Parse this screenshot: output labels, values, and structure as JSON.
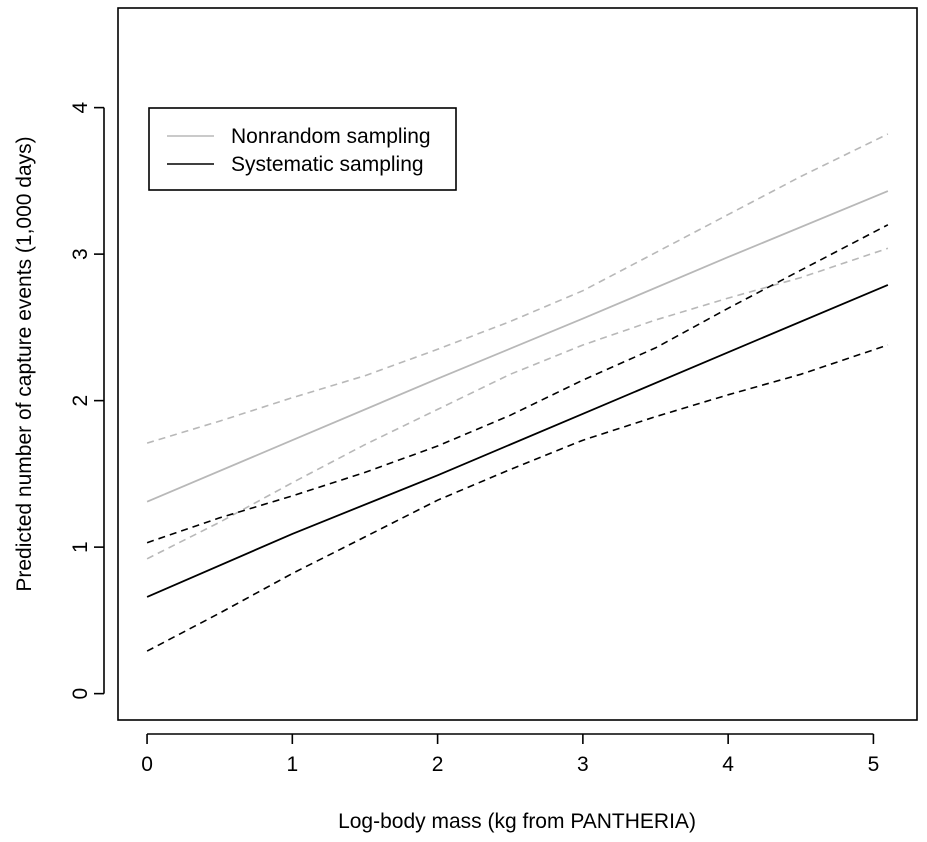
{
  "chart_data": {
    "type": "line",
    "xlabel": "Log-body mass (kg from PANTHERIA)",
    "ylabel": "Predicted number of capture events (1,000 days)",
    "xlim": [
      -0.2,
      5.3
    ],
    "ylim": [
      -0.18,
      4.68
    ],
    "x_ticks": [
      0,
      1,
      2,
      3,
      4,
      5
    ],
    "y_ticks": [
      0,
      1,
      2,
      3,
      4
    ],
    "x_tick_labels": [
      "0",
      "1",
      "2",
      "3",
      "4",
      "5"
    ],
    "y_tick_labels": [
      "0",
      "1",
      "2",
      "3",
      "4"
    ],
    "grid": false,
    "legend_position": "top-left",
    "colors": {
      "nonrandom": "#b8b8b8",
      "systematic": "#000000"
    },
    "series": [
      {
        "name": "Nonrandom sampling",
        "key": "nonrandom",
        "color": "#b8b8b8",
        "fit": [
          [
            0,
            1.31
          ],
          [
            1,
            1.73
          ],
          [
            2,
            2.15
          ],
          [
            3,
            2.56
          ],
          [
            4,
            2.98
          ],
          [
            5.1,
            3.43
          ]
        ],
        "upper": [
          [
            0,
            1.71
          ],
          [
            0.5,
            1.86
          ],
          [
            1,
            2.02
          ],
          [
            1.5,
            2.17
          ],
          [
            2,
            2.35
          ],
          [
            2.5,
            2.54
          ],
          [
            3,
            2.75
          ],
          [
            3.5,
            3.01
          ],
          [
            4,
            3.27
          ],
          [
            4.5,
            3.53
          ],
          [
            5.1,
            3.82
          ]
        ],
        "lower": [
          [
            0,
            0.92
          ],
          [
            0.5,
            1.17
          ],
          [
            1,
            1.44
          ],
          [
            1.5,
            1.7
          ],
          [
            2,
            1.94
          ],
          [
            2.5,
            2.18
          ],
          [
            3,
            2.38
          ],
          [
            3.5,
            2.55
          ],
          [
            4,
            2.7
          ],
          [
            4.5,
            2.84
          ],
          [
            5.1,
            3.04
          ]
        ]
      },
      {
        "name": "Systematic sampling",
        "key": "systematic",
        "color": "#000000",
        "fit": [
          [
            0,
            0.66
          ],
          [
            1,
            1.09
          ],
          [
            2,
            1.49
          ],
          [
            3,
            1.91
          ],
          [
            4,
            2.33
          ],
          [
            5.1,
            2.79
          ]
        ],
        "upper": [
          [
            0,
            1.03
          ],
          [
            0.5,
            1.2
          ],
          [
            1,
            1.35
          ],
          [
            1.5,
            1.51
          ],
          [
            2,
            1.69
          ],
          [
            2.5,
            1.9
          ],
          [
            3,
            2.14
          ],
          [
            3.5,
            2.36
          ],
          [
            4,
            2.63
          ],
          [
            4.5,
            2.89
          ],
          [
            5.1,
            3.2
          ]
        ],
        "lower": [
          [
            0,
            0.29
          ],
          [
            0.5,
            0.55
          ],
          [
            1,
            0.82
          ],
          [
            1.5,
            1.07
          ],
          [
            2,
            1.32
          ],
          [
            2.5,
            1.53
          ],
          [
            3,
            1.73
          ],
          [
            3.5,
            1.89
          ],
          [
            4,
            2.04
          ],
          [
            4.5,
            2.18
          ],
          [
            5.1,
            2.38
          ]
        ]
      }
    ]
  }
}
